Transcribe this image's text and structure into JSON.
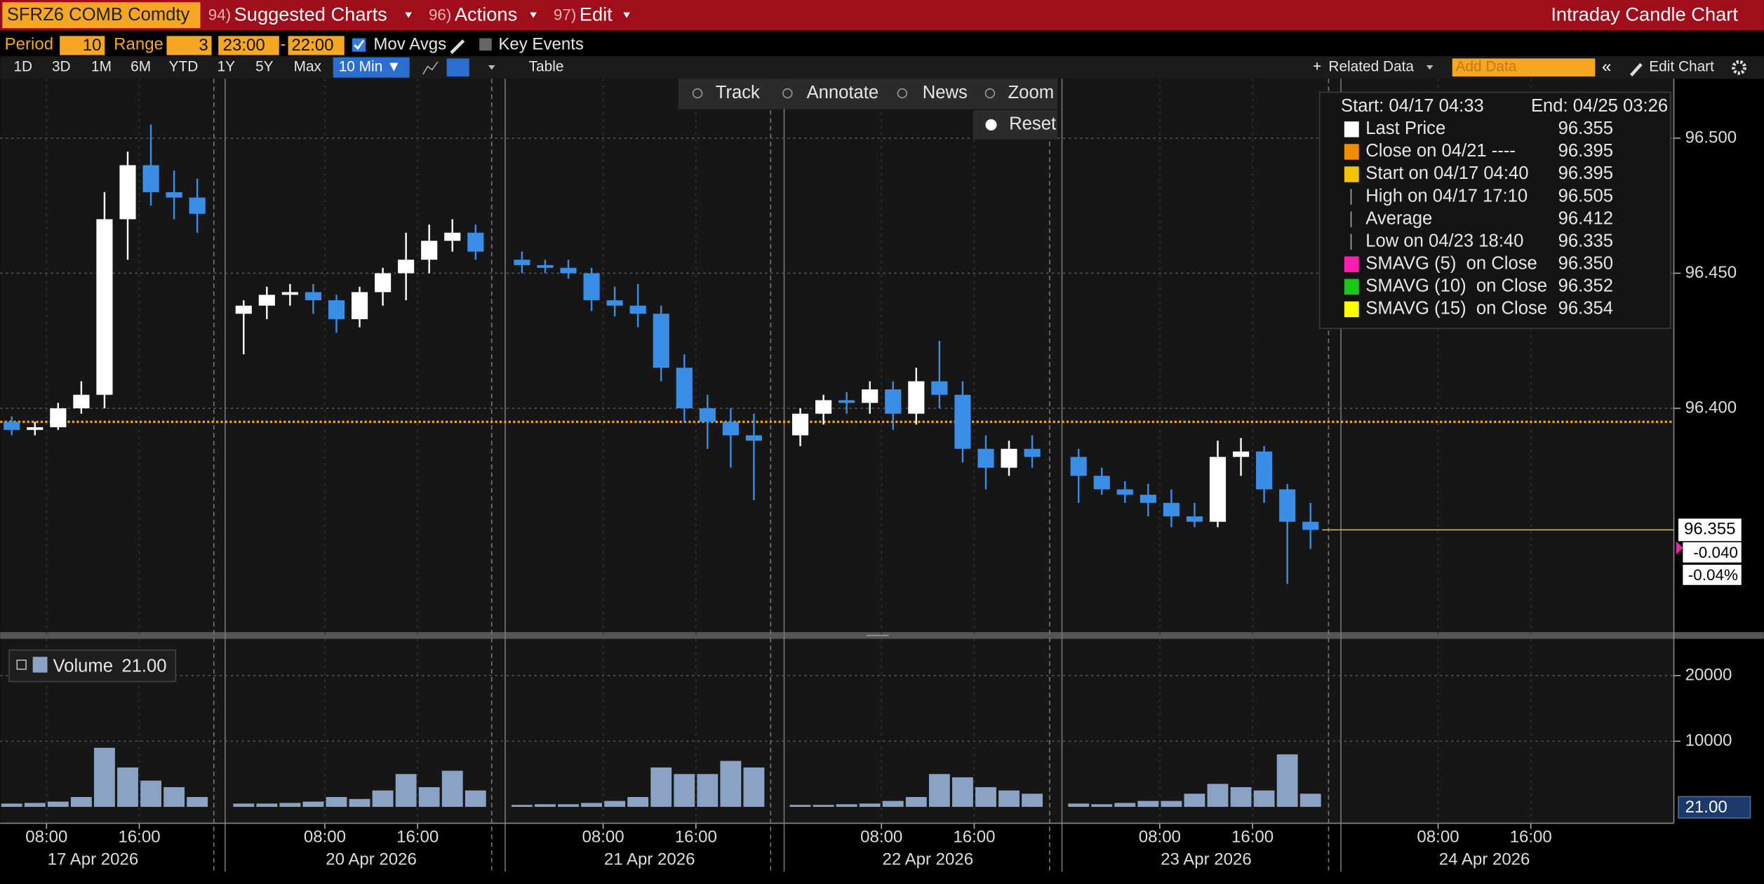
{
  "toolbar": {
    "ticker": "SFRZ6 COMB Comdty",
    "menus": [
      {
        "code": "94)",
        "label": "Suggested Charts"
      },
      {
        "code": "96)",
        "label": "Actions"
      },
      {
        "code": "97)",
        "label": "Edit"
      }
    ],
    "title": "Intraday Candle Chart"
  },
  "settings": {
    "period_label": "Period",
    "period": "10",
    "range_label": "Range",
    "range": "3",
    "time_from": "23:00",
    "time_to": "22:00",
    "mov_avgs": "Mov Avgs",
    "key_events": "Key Events"
  },
  "range_buttons": [
    "1D",
    "3D",
    "1M",
    "6M",
    "YTD",
    "1Y",
    "5Y",
    "Max"
  ],
  "interval": "10 Min ▼",
  "table": "Table",
  "related_data": "Related Data",
  "add_data": "Add Data",
  "edit_chart": "Edit Chart",
  "tools": [
    "Track",
    "Annotate",
    "News",
    "Zoom"
  ],
  "reset": "Reset",
  "legend": {
    "start": "Start: 04/17 04:33",
    "end": "End: 04/25 03:26",
    "items": [
      {
        "label": "Last Price",
        "value": "96.355",
        "color": "#ffffff"
      },
      {
        "label": "Close on 04/21 ----",
        "value": "96.395",
        "color": "#f28c00"
      },
      {
        "label": "Start on 04/17 04:40",
        "value": "96.395",
        "color": "#f5c400"
      },
      {
        "label": "High on 04/17 17:10",
        "value": "96.505"
      },
      {
        "label": "Average",
        "value": "96.412"
      },
      {
        "label": "Low on 04/23 18:40",
        "value": "96.335"
      },
      {
        "label": "SMAVG (5)  on Close",
        "value": "96.350",
        "color": "#ff1cae"
      },
      {
        "label": "SMAVG (10)  on Close",
        "value": "96.352",
        "color": "#19c819"
      },
      {
        "label": "SMAVG (15)  on Close",
        "value": "96.354",
        "color": "#ffff00"
      }
    ]
  },
  "chart_data": [
    {
      "type": "candlestick",
      "up_color": "#ffffff",
      "down_color": "#3a8ee6",
      "x": [
        "2026-04-17 04:00",
        "2026-04-17 06:00",
        "2026-04-17 08:00",
        "2026-04-17 10:00",
        "2026-04-17 12:00",
        "2026-04-17 14:00",
        "2026-04-17 16:00",
        "2026-04-17 18:00",
        "2026-04-17 20:00",
        "2026-04-20 00:00",
        "2026-04-20 02:00",
        "2026-04-20 04:00",
        "2026-04-20 06:00",
        "2026-04-20 08:00",
        "2026-04-20 10:00",
        "2026-04-20 12:00",
        "2026-04-20 14:00",
        "2026-04-20 16:00",
        "2026-04-20 18:00",
        "2026-04-20 20:00",
        "2026-04-21 00:00",
        "2026-04-21 02:00",
        "2026-04-21 04:00",
        "2026-04-21 06:00",
        "2026-04-21 08:00",
        "2026-04-21 10:00",
        "2026-04-21 12:00",
        "2026-04-21 14:00",
        "2026-04-21 16:00",
        "2026-04-21 18:00",
        "2026-04-21 20:00",
        "2026-04-22 00:00",
        "2026-04-22 02:00",
        "2026-04-22 04:00",
        "2026-04-22 06:00",
        "2026-04-22 08:00",
        "2026-04-22 10:00",
        "2026-04-22 12:00",
        "2026-04-22 14:00",
        "2026-04-22 16:00",
        "2026-04-22 18:00",
        "2026-04-22 20:00",
        "2026-04-23 00:00",
        "2026-04-23 02:00",
        "2026-04-23 04:00",
        "2026-04-23 06:00",
        "2026-04-23 08:00",
        "2026-04-23 10:00",
        "2026-04-23 12:00",
        "2026-04-23 14:00",
        "2026-04-23 16:00",
        "2026-04-23 18:00",
        "2026-04-23 20:00"
      ],
      "open": [
        96.395,
        96.392,
        96.393,
        96.4,
        96.405,
        96.47,
        96.49,
        96.48,
        96.478,
        96.435,
        96.438,
        96.442,
        96.443,
        96.44,
        96.433,
        96.443,
        96.45,
        96.455,
        96.462,
        96.465,
        96.455,
        96.453,
        96.452,
        96.45,
        96.44,
        96.438,
        96.435,
        96.415,
        96.4,
        96.395,
        96.39,
        96.39,
        96.398,
        96.403,
        96.402,
        96.407,
        96.398,
        96.41,
        96.405,
        96.385,
        96.378,
        96.385,
        96.382,
        96.375,
        96.37,
        96.368,
        96.365,
        96.36,
        96.358,
        96.382,
        96.384,
        96.37,
        96.358
      ],
      "high": [
        96.397,
        96.395,
        96.402,
        96.41,
        96.48,
        96.495,
        96.505,
        96.488,
        96.485,
        96.44,
        96.445,
        96.446,
        96.446,
        96.442,
        96.445,
        96.452,
        96.465,
        96.468,
        96.47,
        96.468,
        96.458,
        96.455,
        96.455,
        96.452,
        96.445,
        96.446,
        96.438,
        96.42,
        96.405,
        96.4,
        96.398,
        96.4,
        96.405,
        96.406,
        96.41,
        96.41,
        96.415,
        96.425,
        96.41,
        96.39,
        96.388,
        96.39,
        96.385,
        96.378,
        96.373,
        96.372,
        96.37,
        96.365,
        96.388,
        96.389,
        96.386,
        96.372,
        96.365
      ],
      "low": [
        96.39,
        96.39,
        96.392,
        96.398,
        96.4,
        96.455,
        96.475,
        96.47,
        96.465,
        96.42,
        96.433,
        96.438,
        96.435,
        96.428,
        96.43,
        96.438,
        96.44,
        96.45,
        96.458,
        96.455,
        96.45,
        96.45,
        96.448,
        96.436,
        96.434,
        96.43,
        96.41,
        96.395,
        96.385,
        96.378,
        96.366,
        96.386,
        96.394,
        96.398,
        96.398,
        96.392,
        96.394,
        96.4,
        96.38,
        96.37,
        96.375,
        96.378,
        96.365,
        96.368,
        96.365,
        96.36,
        96.356,
        96.356,
        96.356,
        96.375,
        96.365,
        96.335,
        96.348
      ],
      "close": [
        96.392,
        96.393,
        96.4,
        96.405,
        96.47,
        96.49,
        96.48,
        96.478,
        96.472,
        96.438,
        96.442,
        96.443,
        96.44,
        96.433,
        96.443,
        96.45,
        96.455,
        96.462,
        96.465,
        96.458,
        96.453,
        96.452,
        96.45,
        96.44,
        96.438,
        96.435,
        96.415,
        96.4,
        96.395,
        96.39,
        96.388,
        96.398,
        96.403,
        96.402,
        96.407,
        96.398,
        96.41,
        96.405,
        96.385,
        96.378,
        96.385,
        96.382,
        96.375,
        96.37,
        96.368,
        96.365,
        96.36,
        96.358,
        96.382,
        96.384,
        96.37,
        96.358,
        96.355
      ],
      "xlim": [
        "2026-04-17 04:00",
        "2026-04-25 04:20"
      ],
      "ylim": [
        96.318,
        96.522
      ],
      "yticks": [
        {
          "value": 96.5,
          "label": "96.500"
        },
        {
          "value": 96.45,
          "label": "96.450"
        },
        {
          "value": 96.4,
          "label": "96.400"
        }
      ],
      "grid": true,
      "last_price": {
        "value": 96.355,
        "label": "96.355"
      },
      "change": "-0.040",
      "change_pct": "-0.04%"
    },
    {
      "type": "bar",
      "color": "#8aa3c4",
      "name": "Volume",
      "last_value": {
        "value": 21,
        "label": "21.00"
      },
      "x": [
        "2026-04-17 04:00",
        "2026-04-17 06:00",
        "2026-04-17 08:00",
        "2026-04-17 10:00",
        "2026-04-17 12:00",
        "2026-04-17 14:00",
        "2026-04-17 16:00",
        "2026-04-17 18:00",
        "2026-04-17 20:00",
        "2026-04-20 00:00",
        "2026-04-20 02:00",
        "2026-04-20 04:00",
        "2026-04-20 06:00",
        "2026-04-20 08:00",
        "2026-04-20 10:00",
        "2026-04-20 12:00",
        "2026-04-20 14:00",
        "2026-04-20 16:00",
        "2026-04-20 18:00",
        "2026-04-20 20:00",
        "2026-04-21 00:00",
        "2026-04-21 02:00",
        "2026-04-21 04:00",
        "2026-04-21 06:00",
        "2026-04-21 08:00",
        "2026-04-21 10:00",
        "2026-04-21 12:00",
        "2026-04-21 14:00",
        "2026-04-21 16:00",
        "2026-04-21 18:00",
        "2026-04-21 20:00",
        "2026-04-22 00:00",
        "2026-04-22 02:00",
        "2026-04-22 04:00",
        "2026-04-22 06:00",
        "2026-04-22 08:00",
        "2026-04-22 10:00",
        "2026-04-22 12:00",
        "2026-04-22 14:00",
        "2026-04-22 16:00",
        "2026-04-22 18:00",
        "2026-04-22 20:00",
        "2026-04-23 00:00",
        "2026-04-23 02:00",
        "2026-04-23 04:00",
        "2026-04-23 06:00",
        "2026-04-23 08:00",
        "2026-04-23 10:00",
        "2026-04-23 12:00",
        "2026-04-23 14:00",
        "2026-04-23 16:00",
        "2026-04-23 18:00",
        "2026-04-23 20:00"
      ],
      "values": [
        500,
        600,
        800,
        1500,
        9000,
        6000,
        4000,
        3000,
        1500,
        500,
        500,
        600,
        800,
        1500,
        1200,
        2500,
        5000,
        3000,
        5500,
        2500,
        300,
        400,
        400,
        600,
        900,
        1500,
        6000,
        5000,
        5000,
        7000,
        6000,
        300,
        300,
        400,
        500,
        900,
        1500,
        5000,
        4500,
        3000,
        2500,
        2000,
        500,
        400,
        600,
        900,
        900,
        2000,
        3500,
        3000,
        2500,
        8000,
        2000
      ],
      "xlim": [
        "2026-04-17 04:00",
        "2026-04-25 04:20"
      ],
      "ylim": [
        -2500,
        25600
      ],
      "yticks": [
        10000,
        20000
      ],
      "grid": true,
      "xticks": [
        {
          "value": "2026-04-17 08:00",
          "label": "08:00"
        },
        {
          "value": "2026-04-17 16:00",
          "label": "16:00"
        },
        {
          "value": "2026-04-20 08:00",
          "label": "08:00"
        },
        {
          "value": "2026-04-20 16:00",
          "label": "16:00"
        },
        {
          "value": "2026-04-21 08:00",
          "label": "08:00"
        },
        {
          "value": "2026-04-21 16:00",
          "label": "16:00"
        },
        {
          "value": "2026-04-22 08:00",
          "label": "08:00"
        },
        {
          "value": "2026-04-22 16:00",
          "label": "16:00"
        },
        {
          "value": "2026-04-23 08:00",
          "label": "08:00"
        },
        {
          "value": "2026-04-23 16:00",
          "label": "16:00"
        },
        {
          "value": "2026-04-24 08:00",
          "label": "08:00"
        },
        {
          "value": "2026-04-24 16:00",
          "label": "16:00"
        }
      ],
      "day_ticks": [
        {
          "value": "2026-04-17 12:00",
          "label": "17 Apr 2026"
        },
        {
          "value": "2026-04-20 12:00",
          "label": "20 Apr 2026"
        },
        {
          "value": "2026-04-21 12:00",
          "label": "21 Apr 2026"
        },
        {
          "value": "2026-04-22 12:00",
          "label": "22 Apr 2026"
        },
        {
          "value": "2026-04-23 12:00",
          "label": "23 Apr 2026"
        },
        {
          "value": "2026-04-24 12:00",
          "label": "24 Apr 2026"
        }
      ]
    }
  ]
}
